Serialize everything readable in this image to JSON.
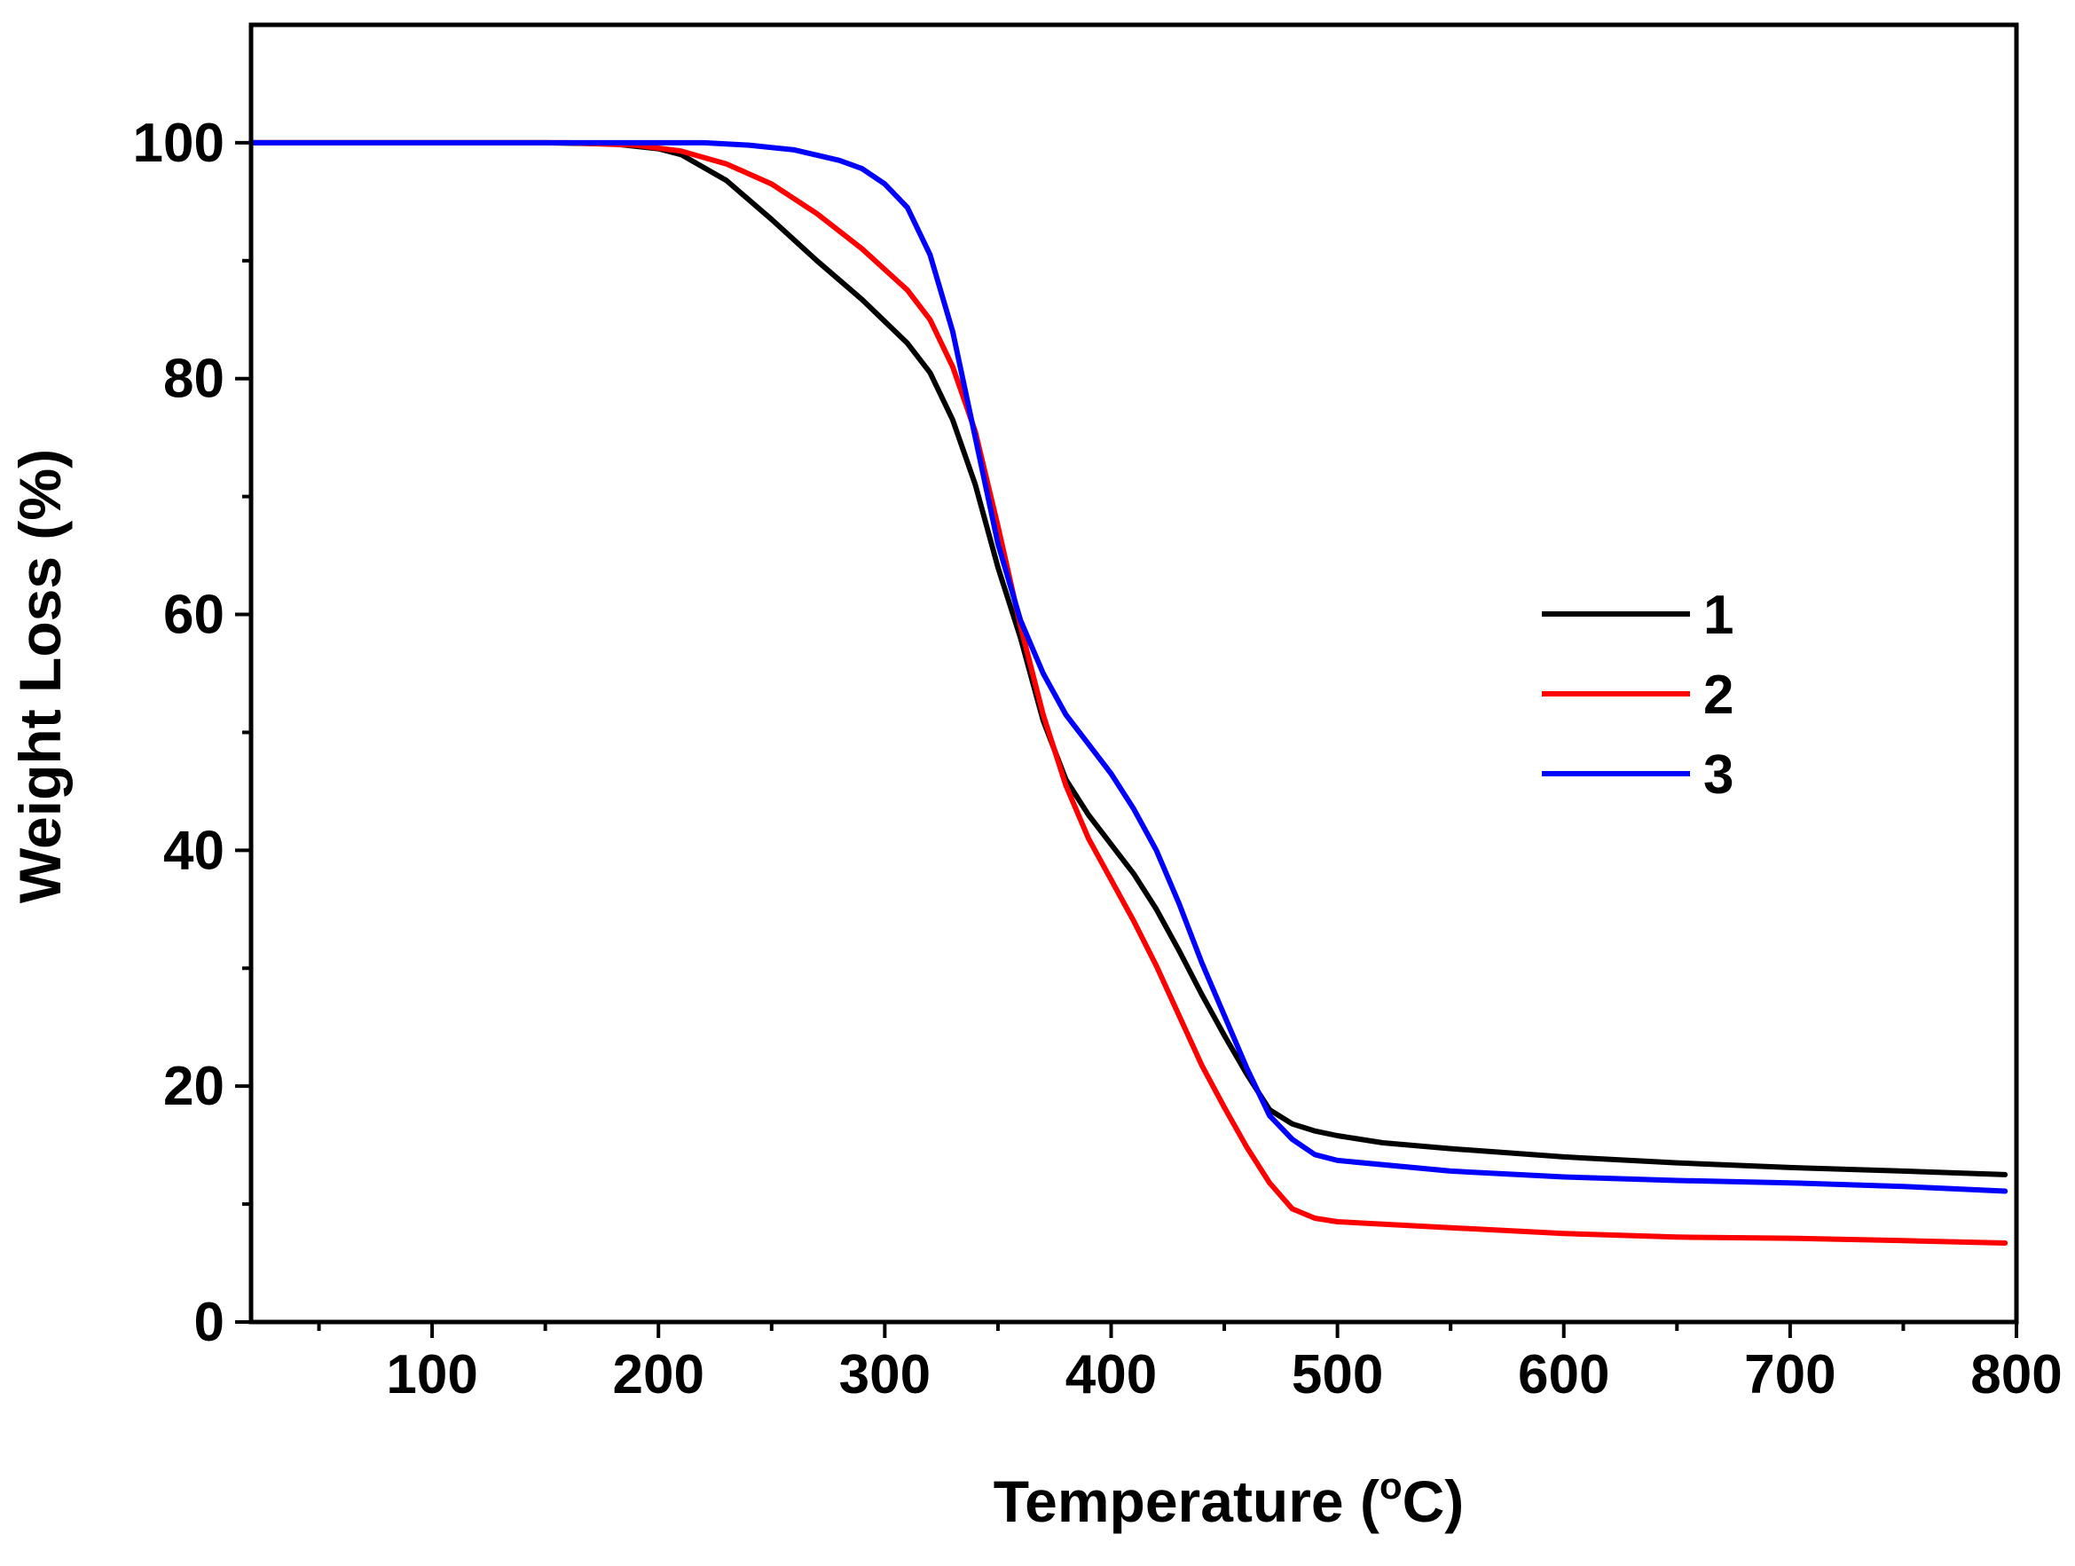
{
  "chart_data": {
    "type": "line",
    "title": "",
    "xlabel": "Temperature (",
    "xlabel_sup": "o",
    "xlabel_tail": "C)",
    "ylabel": "Weight Loss (%)",
    "xlim": [
      20,
      800
    ],
    "ylim": [
      0,
      110
    ],
    "x_ticks": [
      100,
      200,
      300,
      400,
      500,
      600,
      700,
      800
    ],
    "y_ticks": [
      0,
      20,
      40,
      60,
      80,
      100
    ],
    "x_minor_step": 50,
    "y_minor_step": 10,
    "legend_position": "center-right",
    "series": [
      {
        "name": "1",
        "color": "#000000",
        "points": [
          [
            20,
            100
          ],
          [
            150,
            100
          ],
          [
            180,
            99.9
          ],
          [
            200,
            99.5
          ],
          [
            210,
            99
          ],
          [
            230,
            96.8
          ],
          [
            250,
            93.5
          ],
          [
            270,
            90
          ],
          [
            290,
            86.7
          ],
          [
            310,
            83
          ],
          [
            320,
            80.5
          ],
          [
            330,
            76.5
          ],
          [
            340,
            71
          ],
          [
            350,
            64
          ],
          [
            360,
            58
          ],
          [
            370,
            51
          ],
          [
            380,
            46
          ],
          [
            390,
            43
          ],
          [
            400,
            40.5
          ],
          [
            410,
            38
          ],
          [
            420,
            35
          ],
          [
            430,
            31.5
          ],
          [
            440,
            27.8
          ],
          [
            450,
            24.3
          ],
          [
            460,
            21
          ],
          [
            470,
            18
          ],
          [
            480,
            16.8
          ],
          [
            490,
            16.2
          ],
          [
            500,
            15.8
          ],
          [
            520,
            15.2
          ],
          [
            550,
            14.7
          ],
          [
            600,
            14
          ],
          [
            650,
            13.5
          ],
          [
            700,
            13.1
          ],
          [
            750,
            12.8
          ],
          [
            795,
            12.5
          ]
        ]
      },
      {
        "name": "2",
        "color": "#ff0000",
        "points": [
          [
            20,
            100
          ],
          [
            160,
            100
          ],
          [
            190,
            99.8
          ],
          [
            210,
            99.3
          ],
          [
            230,
            98.2
          ],
          [
            250,
            96.5
          ],
          [
            270,
            94
          ],
          [
            290,
            91
          ],
          [
            310,
            87.5
          ],
          [
            320,
            85
          ],
          [
            330,
            81
          ],
          [
            340,
            75.5
          ],
          [
            350,
            67.5
          ],
          [
            360,
            59
          ],
          [
            370,
            51.5
          ],
          [
            380,
            45.5
          ],
          [
            390,
            41
          ],
          [
            400,
            37.5
          ],
          [
            410,
            34
          ],
          [
            420,
            30.2
          ],
          [
            430,
            26
          ],
          [
            440,
            21.8
          ],
          [
            450,
            18.2
          ],
          [
            460,
            14.8
          ],
          [
            470,
            11.8
          ],
          [
            480,
            9.6
          ],
          [
            490,
            8.8
          ],
          [
            500,
            8.5
          ],
          [
            550,
            8
          ],
          [
            600,
            7.5
          ],
          [
            650,
            7.2
          ],
          [
            700,
            7.1
          ],
          [
            750,
            6.9
          ],
          [
            795,
            6.7
          ]
        ]
      },
      {
        "name": "3",
        "color": "#0000ff",
        "points": [
          [
            20,
            100
          ],
          [
            200,
            100
          ],
          [
            220,
            100
          ],
          [
            240,
            99.8
          ],
          [
            260,
            99.4
          ],
          [
            280,
            98.5
          ],
          [
            290,
            97.8
          ],
          [
            300,
            96.5
          ],
          [
            310,
            94.5
          ],
          [
            320,
            90.5
          ],
          [
            330,
            84
          ],
          [
            340,
            75
          ],
          [
            350,
            66
          ],
          [
            360,
            59.5
          ],
          [
            370,
            55
          ],
          [
            380,
            51.5
          ],
          [
            390,
            49
          ],
          [
            400,
            46.5
          ],
          [
            410,
            43.5
          ],
          [
            420,
            40
          ],
          [
            430,
            35.5
          ],
          [
            440,
            30.5
          ],
          [
            450,
            26
          ],
          [
            460,
            21.5
          ],
          [
            470,
            17.5
          ],
          [
            480,
            15.5
          ],
          [
            490,
            14.2
          ],
          [
            500,
            13.7
          ],
          [
            550,
            12.8
          ],
          [
            600,
            12.3
          ],
          [
            650,
            12
          ],
          [
            700,
            11.8
          ],
          [
            750,
            11.5
          ],
          [
            795,
            11.1
          ]
        ]
      }
    ]
  }
}
